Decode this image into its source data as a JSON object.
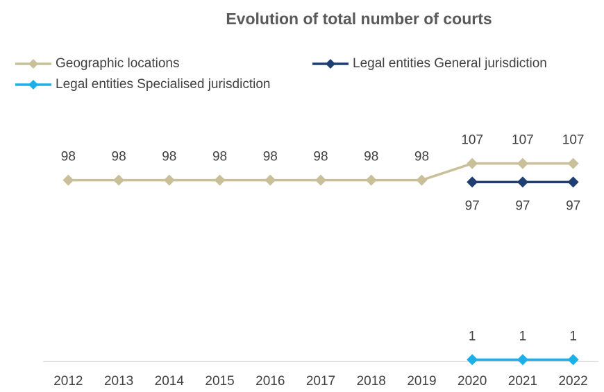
{
  "chart_data": {
    "type": "line",
    "title": "Evolution of total number of courts",
    "categories": [
      "2012",
      "2013",
      "2014",
      "2015",
      "2016",
      "2017",
      "2018",
      "2019",
      "2020",
      "2021",
      "2022"
    ],
    "series": [
      {
        "name": "Geographic locations",
        "color": "#c9c09a",
        "label_position": "above",
        "values": [
          98,
          98,
          98,
          98,
          98,
          98,
          98,
          98,
          107,
          107,
          107
        ]
      },
      {
        "name": "Legal entities General jurisdiction",
        "color": "#1f3f73",
        "label_position": "below",
        "values": [
          null,
          null,
          null,
          null,
          null,
          null,
          null,
          null,
          97,
          97,
          97
        ]
      },
      {
        "name": "Legal entities Specialised jurisdiction",
        "color": "#1bb0e8",
        "label_position": "above",
        "values": [
          null,
          null,
          null,
          null,
          null,
          null,
          null,
          null,
          1,
          1,
          1
        ]
      }
    ],
    "ylim": [
      0,
      120
    ],
    "grid": false
  }
}
